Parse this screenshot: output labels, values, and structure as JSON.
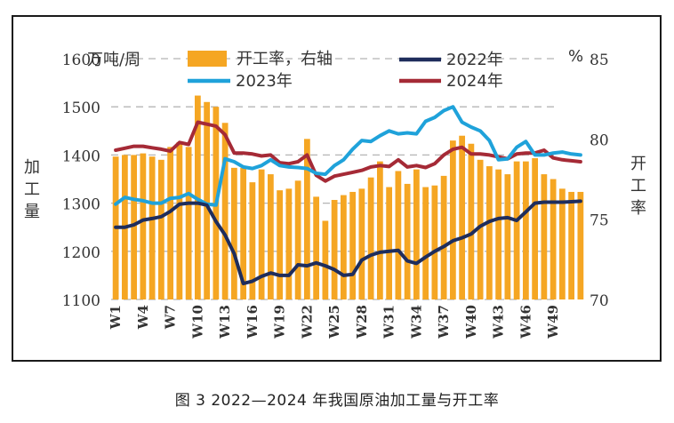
{
  "caption": "图 3  2022—2024 年我国原油加工量与开工率",
  "chart_data": {
    "type": "bar+line",
    "unit_left": "万吨/周",
    "unit_right": "%",
    "ylabel_left": "加工量",
    "ylabel_right": "开工率",
    "ylim_left": [
      1100,
      1600
    ],
    "ylim_right": [
      70,
      85
    ],
    "yticks_left": [
      1100,
      1200,
      1300,
      1400,
      1500,
      1600
    ],
    "yticks_right": [
      70,
      75,
      80,
      85
    ],
    "grid": "dashed-horizontal",
    "legend_position": "top",
    "weeks": 52,
    "xtick_labels": [
      "W1",
      "W4",
      "W7",
      "W10",
      "W13",
      "W16",
      "W19",
      "W22",
      "W25",
      "W28",
      "W31",
      "W34",
      "W37",
      "W40",
      "W43",
      "W46",
      "W49"
    ],
    "colors": {
      "bar": "#F5A623",
      "s2022": "#1F2D5C",
      "s2023": "#1FA2DA",
      "s2024": "#A52A36",
      "grid": "#b5b5b5"
    },
    "legend": {
      "bar": "开工率，右轴",
      "s2022": "2022年",
      "s2023": "2023年",
      "s2024": "2024年"
    },
    "bar_values": [
      78.9,
      79.0,
      79.0,
      79.1,
      78.9,
      78.7,
      79.5,
      79.8,
      79.5,
      82.7,
      82.3,
      82.0,
      81.0,
      78.2,
      78.2,
      77.3,
      78.1,
      77.8,
      76.8,
      76.9,
      77.4,
      80.0,
      76.4,
      74.9,
      76.2,
      76.5,
      76.7,
      76.9,
      77.6,
      78.6,
      77.0,
      78.0,
      77.2,
      78.1,
      77.0,
      77.1,
      77.7,
      79.9,
      80.2,
      79.7,
      78.7,
      78.3,
      78.1,
      77.8,
      78.6,
      78.6,
      78.8,
      77.8,
      77.5,
      76.9,
      76.7,
      76.7
    ],
    "series": [
      {
        "name": "2022年",
        "key": "s2022",
        "values": [
          1250,
          1250,
          1255,
          1265,
          1268,
          1272,
          1283,
          1298,
          1300,
          1300,
          1296,
          1262,
          1234,
          1195,
          1133,
          1138,
          1148,
          1155,
          1150,
          1150,
          1172,
          1170,
          1176,
          1170,
          1162,
          1150,
          1152,
          1182,
          1192,
          1198,
          1200,
          1202,
          1180,
          1175,
          1188,
          1200,
          1210,
          1222,
          1228,
          1236,
          1252,
          1262,
          1268,
          1270,
          1264,
          1282,
          1300,
          1302,
          1302,
          1302,
          1303,
          1304
        ]
      },
      {
        "name": "2023年",
        "key": "s2023",
        "values": [
          1298,
          1312,
          1308,
          1305,
          1300,
          1300,
          1310,
          1312,
          1320,
          1308,
          1298,
          1296,
          1392,
          1386,
          1375,
          1372,
          1378,
          1390,
          1378,
          1375,
          1374,
          1372,
          1362,
          1360,
          1378,
          1390,
          1412,
          1430,
          1428,
          1440,
          1450,
          1444,
          1446,
          1444,
          1470,
          1478,
          1492,
          1500,
          1468,
          1458,
          1450,
          1430,
          1390,
          1392,
          1416,
          1428,
          1400,
          1400,
          1404,
          1406,
          1402,
          1400
        ]
      },
      {
        "name": "2024年",
        "key": "s2024",
        "values": [
          1410,
          1414,
          1418,
          1418,
          1415,
          1412,
          1408,
          1426,
          1422,
          1468,
          1464,
          1460,
          1442,
          1404,
          1404,
          1402,
          1398,
          1400,
          1384,
          1382,
          1386,
          1400,
          1358,
          1346,
          1356,
          1360,
          1364,
          1368,
          1375,
          1378,
          1376,
          1390,
          1375,
          1378,
          1374,
          1382,
          1400,
          1412,
          1416,
          1402,
          1402,
          1400,
          1396,
          1392,
          1402,
          1404,
          1404,
          1410,
          1394,
          1390,
          1388,
          1386
        ]
      }
    ]
  }
}
